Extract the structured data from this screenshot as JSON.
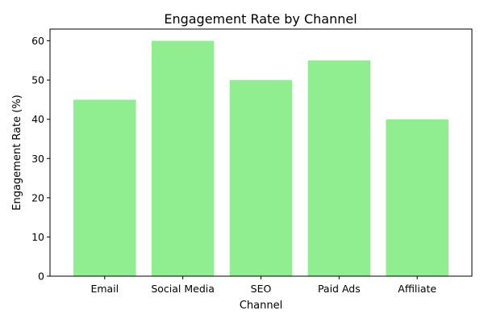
{
  "chart_data": {
    "type": "bar",
    "title": "Engagement Rate by Channel",
    "xlabel": "Channel",
    "ylabel": "Engagement Rate (%)",
    "categories": [
      "Email",
      "Social Media",
      "SEO",
      "Paid Ads",
      "Affiliate"
    ],
    "values": [
      45,
      60,
      50,
      55,
      40
    ],
    "ylim": [
      0,
      63
    ],
    "yticks": [
      0,
      10,
      20,
      30,
      40,
      50,
      60
    ],
    "bar_color": "#90ee90",
    "grid": false,
    "legend": "none"
  }
}
